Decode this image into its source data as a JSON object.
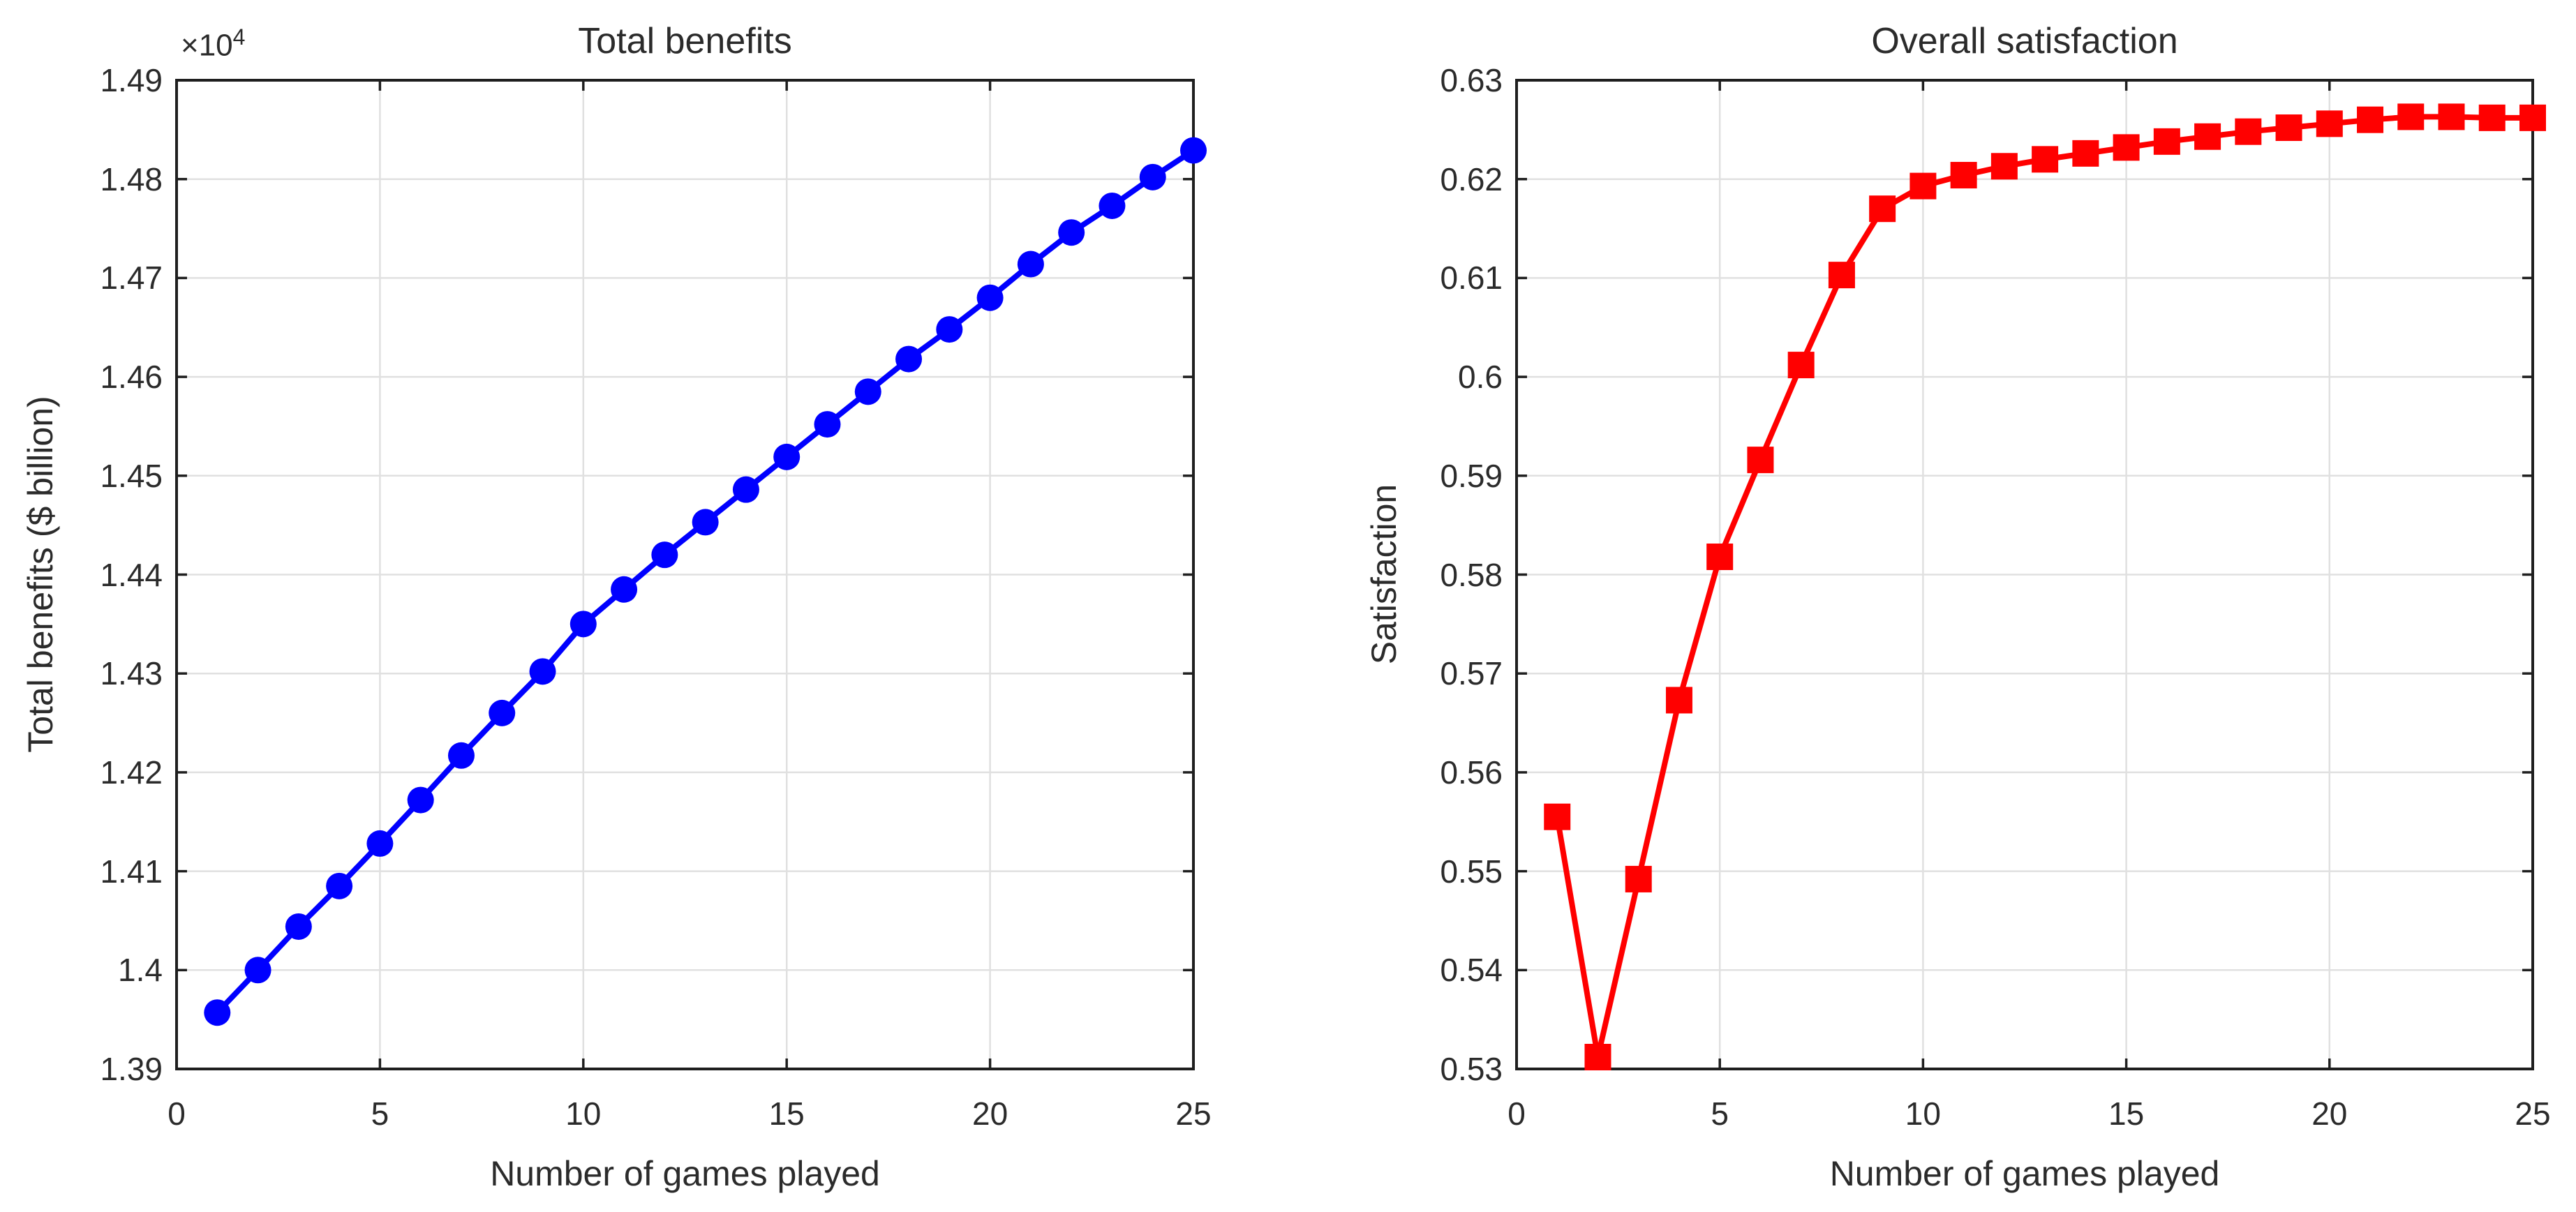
{
  "figure": {
    "background": "#ffffff",
    "axis_color": "#1f1f1f",
    "grid_color": "#e0e0e0",
    "tick_text_color": "#2b2b2b",
    "grid": "on",
    "box": "on"
  },
  "chart_data": [
    {
      "type": "line",
      "title": "Total benefits",
      "xlabel": "Number of games played",
      "ylabel": "Total benefits ($ billion)",
      "y_offset_base": "×10",
      "y_offset_exp": "4",
      "line_color": "#0000ff",
      "marker": "circle",
      "marker_size": 38,
      "line_width": 8,
      "xlim": [
        0,
        25
      ],
      "ylim": [
        1.39,
        1.49
      ],
      "x_ticks": [
        0,
        5,
        10,
        15,
        20,
        25
      ],
      "x_tick_labels": [
        "0",
        "5",
        "10",
        "15",
        "20",
        "25"
      ],
      "y_ticks": [
        1.39,
        1.4,
        1.41,
        1.42,
        1.43,
        1.44,
        1.45,
        1.46,
        1.47,
        1.48,
        1.49
      ],
      "y_tick_labels": [
        "1.39",
        "1.4",
        "1.41",
        "1.42",
        "1.43",
        "1.44",
        "1.45",
        "1.46",
        "1.47",
        "1.48",
        "1.49"
      ],
      "x": [
        1,
        2,
        3,
        4,
        5,
        6,
        7,
        8,
        9,
        10,
        11,
        12,
        13,
        14,
        15,
        16,
        17,
        18,
        19,
        20,
        21,
        22,
        23,
        24,
        25
      ],
      "y": [
        1.3957,
        1.4,
        1.4044,
        1.4085,
        1.4128,
        1.4172,
        1.4217,
        1.426,
        1.4302,
        1.435,
        1.4385,
        1.442,
        1.4453,
        1.4486,
        1.4519,
        1.4552,
        1.4585,
        1.4618,
        1.4648,
        1.468,
        1.4714,
        1.4746,
        1.4773,
        1.4802,
        1.4829
      ]
    },
    {
      "type": "line",
      "title": "Overall satisfaction",
      "xlabel": "Number of games played",
      "ylabel": "Satisfaction",
      "y_offset_base": "",
      "y_offset_exp": "",
      "line_color": "#ff0000",
      "marker": "square",
      "marker_size": 38,
      "line_width": 8,
      "xlim": [
        0,
        25
      ],
      "ylim": [
        0.53,
        0.63
      ],
      "x_ticks": [
        0,
        5,
        10,
        15,
        20,
        25
      ],
      "x_tick_labels": [
        "0",
        "5",
        "10",
        "15",
        "20",
        "25"
      ],
      "y_ticks": [
        0.53,
        0.54,
        0.55,
        0.56,
        0.57,
        0.58,
        0.59,
        0.6,
        0.61,
        0.62,
        0.63
      ],
      "y_tick_labels": [
        "0.53",
        "0.54",
        "0.55",
        "0.56",
        "0.57",
        "0.58",
        "0.59",
        "0.6",
        "0.61",
        "0.62",
        "0.63"
      ],
      "x": [
        1,
        2,
        3,
        4,
        5,
        6,
        7,
        8,
        9,
        10,
        11,
        12,
        13,
        14,
        15,
        16,
        17,
        18,
        19,
        20,
        21,
        22,
        23,
        24,
        25
      ],
      "y": [
        0.5555,
        0.5312,
        0.5492,
        0.5673,
        0.5818,
        0.5916,
        0.6012,
        0.6103,
        0.617,
        0.6193,
        0.6204,
        0.6213,
        0.622,
        0.6226,
        0.6232,
        0.6238,
        0.6243,
        0.6248,
        0.6252,
        0.6256,
        0.626,
        0.6263,
        0.6263,
        0.6262,
        0.6262
      ]
    }
  ]
}
